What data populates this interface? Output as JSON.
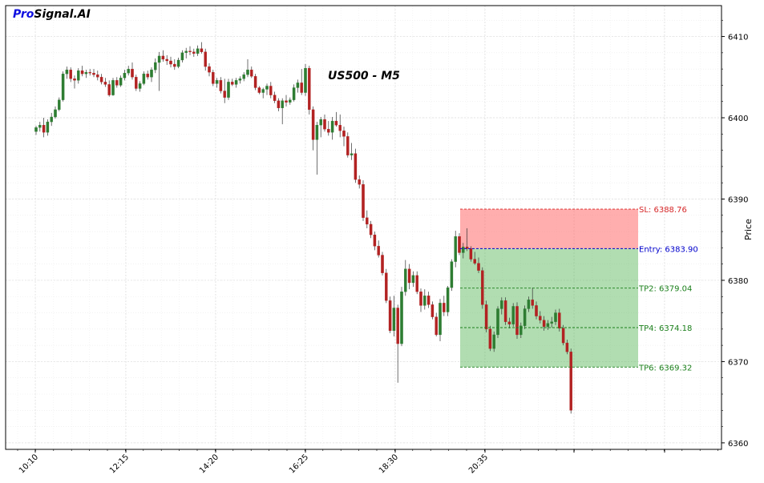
{
  "brand": {
    "part1": "Pro",
    "part2": "Signal.AI"
  },
  "chart_data": {
    "type": "candlestick",
    "title": "US500 - M5",
    "ylabel": "Price",
    "ylim": [
      6359.2,
      6413.8
    ],
    "yticks": [
      6360,
      6370,
      6380,
      6390,
      6400,
      6410
    ],
    "xtick_labels": [
      "10:10",
      "12:15",
      "14:20",
      "16:25",
      "18:30",
      "20:35",
      "",
      ""
    ],
    "grid": true,
    "levels": [
      {
        "name": "SL",
        "label": "SL: 6388.76",
        "price": 6388.76,
        "color": "#d62728"
      },
      {
        "name": "Entry",
        "label": "Entry: 6383.90",
        "price": 6383.9,
        "color": "#0000cc"
      },
      {
        "name": "TP2",
        "label": "TP2: 6379.04",
        "price": 6379.04,
        "color": "#1a7f1a"
      },
      {
        "name": "TP4",
        "label": "TP4: 6374.18",
        "price": 6374.18,
        "color": "#1a7f1a"
      },
      {
        "name": "TP6",
        "label": "TP6: 6369.32",
        "price": 6369.32,
        "color": "#1a7f1a"
      }
    ],
    "up_color": "#2e7d32",
    "down_color": "#b22222",
    "candles": [
      [
        6398.3,
        6399.0,
        6397.9,
        6398.8
      ],
      [
        6398.8,
        6399.5,
        6398.3,
        6399.1
      ],
      [
        6399.1,
        6400.0,
        6397.6,
        6398.2
      ],
      [
        6398.2,
        6399.8,
        6397.8,
        6399.5
      ],
      [
        6399.5,
        6400.6,
        6399.0,
        6400.1
      ],
      [
        6400.1,
        6401.4,
        6399.9,
        6401.0
      ],
      [
        6401.0,
        6402.5,
        6400.8,
        6402.2
      ],
      [
        6402.2,
        6405.7,
        6402.0,
        6405.4
      ],
      [
        6405.4,
        6406.3,
        6404.8,
        6405.9
      ],
      [
        6405.9,
        6406.2,
        6404.4,
        6404.8
      ],
      [
        6404.8,
        6405.2,
        6403.6,
        6404.6
      ],
      [
        6404.6,
        6406.1,
        6404.2,
        6405.8
      ],
      [
        6405.8,
        6406.4,
        6405.1,
        6405.4
      ],
      [
        6405.4,
        6405.9,
        6404.9,
        6405.6
      ],
      [
        6405.6,
        6406.0,
        6405.2,
        6405.5
      ],
      [
        6405.5,
        6406.0,
        6405.0,
        6405.3
      ],
      [
        6405.3,
        6405.8,
        6404.6,
        6405.0
      ],
      [
        6405.0,
        6405.4,
        6404.1,
        6404.4
      ],
      [
        6404.4,
        6404.9,
        6403.8,
        6404.1
      ],
      [
        6404.1,
        6404.6,
        6402.6,
        6402.8
      ],
      [
        6402.8,
        6404.9,
        6402.7,
        6404.6
      ],
      [
        6404.6,
        6405.0,
        6403.7,
        6404.0
      ],
      [
        6404.0,
        6405.2,
        6403.8,
        6404.9
      ],
      [
        6404.9,
        6405.9,
        6404.6,
        6405.5
      ],
      [
        6405.5,
        6406.4,
        6405.2,
        6406.0
      ],
      [
        6406.0,
        6406.8,
        6404.7,
        6405.0
      ],
      [
        6405.0,
        6405.3,
        6403.3,
        6403.6
      ],
      [
        6403.6,
        6404.5,
        6403.2,
        6404.2
      ],
      [
        6404.2,
        6405.7,
        6404.0,
        6405.4
      ],
      [
        6405.4,
        6405.8,
        6404.7,
        6405.0
      ],
      [
        6405.0,
        6406.2,
        6404.4,
        6405.9
      ],
      [
        6405.9,
        6407.3,
        6405.5,
        6406.8
      ],
      [
        6406.8,
        6408.1,
        6403.3,
        6407.6
      ],
      [
        6407.6,
        6408.3,
        6406.9,
        6407.2
      ],
      [
        6407.2,
        6407.7,
        6406.5,
        6407.0
      ],
      [
        6407.0,
        6407.5,
        6406.2,
        6406.6
      ],
      [
        6406.6,
        6407.2,
        6405.9,
        6406.3
      ],
      [
        6406.3,
        6407.4,
        6406.1,
        6407.1
      ],
      [
        6407.1,
        6408.3,
        6406.8,
        6408.0
      ],
      [
        6408.0,
        6408.6,
        6407.3,
        6408.2
      ],
      [
        6408.2,
        6408.8,
        6407.7,
        6408.1
      ],
      [
        6408.1,
        6408.5,
        6407.5,
        6407.9
      ],
      [
        6407.9,
        6408.9,
        6407.6,
        6408.5
      ],
      [
        6408.5,
        6409.3,
        6407.9,
        6408.1
      ],
      [
        6408.1,
        6408.5,
        6405.8,
        6406.3
      ],
      [
        6406.3,
        6406.7,
        6405.1,
        6405.6
      ],
      [
        6405.6,
        6405.9,
        6403.9,
        6404.2
      ],
      [
        6404.2,
        6404.9,
        6403.7,
        6404.6
      ],
      [
        6404.6,
        6405.0,
        6403.0,
        6403.3
      ],
      [
        6403.3,
        6404.8,
        6401.8,
        6402.5
      ],
      [
        6402.5,
        6404.8,
        6402.2,
        6404.4
      ],
      [
        6404.4,
        6404.8,
        6403.9,
        6404.1
      ],
      [
        6404.1,
        6404.9,
        6403.7,
        6404.6
      ],
      [
        6404.6,
        6405.1,
        6404.2,
        6404.8
      ],
      [
        6404.8,
        6405.6,
        6404.5,
        6405.3
      ],
      [
        6405.3,
        6407.2,
        6405.0,
        6405.9
      ],
      [
        6405.9,
        6406.3,
        6404.9,
        6405.1
      ],
      [
        6405.1,
        6405.4,
        6403.4,
        6403.7
      ],
      [
        6403.7,
        6403.9,
        6402.9,
        6403.1
      ],
      [
        6403.1,
        6403.7,
        6402.4,
        6403.5
      ],
      [
        6403.5,
        6404.2,
        6402.8,
        6403.9
      ],
      [
        6403.9,
        6404.4,
        6402.4,
        6402.8
      ],
      [
        6402.8,
        6403.2,
        6401.8,
        6402.1
      ],
      [
        6402.1,
        6402.4,
        6400.8,
        6401.2
      ],
      [
        6401.2,
        6402.4,
        6399.2,
        6402.1
      ],
      [
        6402.1,
        6402.8,
        6401.4,
        6401.9
      ],
      [
        6401.9,
        6402.5,
        6401.6,
        6402.2
      ],
      [
        6402.2,
        6404.1,
        6402.0,
        6403.7
      ],
      [
        6403.7,
        6404.7,
        6403.1,
        6404.3
      ],
      [
        6404.3,
        6406.0,
        6402.8,
        6403.1
      ],
      [
        6403.1,
        6406.6,
        6402.7,
        6406.1
      ],
      [
        6406.1,
        6406.4,
        6400.4,
        6401.0
      ],
      [
        6401.0,
        6401.4,
        6396.0,
        6397.3
      ],
      [
        6397.3,
        6399.5,
        6393.0,
        6399.1
      ],
      [
        6399.1,
        6400.1,
        6397.6,
        6399.8
      ],
      [
        6399.8,
        6400.4,
        6398.3,
        6398.6
      ],
      [
        6398.6,
        6399.6,
        6397.8,
        6398.2
      ],
      [
        6398.2,
        6400.1,
        6397.3,
        6399.6
      ],
      [
        6399.6,
        6400.7,
        6398.9,
        6399.1
      ],
      [
        6399.1,
        6400.4,
        6397.6,
        6398.4
      ],
      [
        6398.4,
        6398.9,
        6396.5,
        6397.7
      ],
      [
        6397.7,
        6398.2,
        6395.1,
        6395.4
      ],
      [
        6395.4,
        6396.9,
        6394.8,
        6395.6
      ],
      [
        6395.6,
        6396.2,
        6392.0,
        6392.4
      ],
      [
        6392.4,
        6392.9,
        6391.3,
        6391.8
      ],
      [
        6391.8,
        6392.3,
        6387.3,
        6387.7
      ],
      [
        6387.7,
        6388.6,
        6386.4,
        6386.9
      ],
      [
        6386.9,
        6387.3,
        6385.2,
        6385.6
      ],
      [
        6385.6,
        6386.0,
        6383.7,
        6384.2
      ],
      [
        6384.2,
        6384.9,
        6382.8,
        6383.1
      ],
      [
        6383.1,
        6383.5,
        6380.6,
        6380.9
      ],
      [
        6380.9,
        6381.4,
        6377.2,
        6377.5
      ],
      [
        6377.5,
        6378.0,
        6373.5,
        6373.8
      ],
      [
        6373.8,
        6378.1,
        6373.1,
        6376.6
      ],
      [
        6376.6,
        6377.0,
        6367.4,
        6372.2
      ],
      [
        6372.2,
        6379.2,
        6371.9,
        6378.6
      ],
      [
        6378.6,
        6382.5,
        6378.1,
        6381.4
      ],
      [
        6381.4,
        6382.0,
        6378.9,
        6379.7
      ],
      [
        6379.7,
        6381.1,
        6379.2,
        6380.6
      ],
      [
        6380.6,
        6381.1,
        6378.3,
        6378.6
      ],
      [
        6378.6,
        6379.0,
        6376.1,
        6376.9
      ],
      [
        6376.9,
        6378.9,
        6376.4,
        6378.1
      ],
      [
        6378.1,
        6378.6,
        6376.6,
        6377.0
      ],
      [
        6377.0,
        6377.4,
        6375.2,
        6375.5
      ],
      [
        6375.5,
        6376.0,
        6373.1,
        6373.3
      ],
      [
        6373.3,
        6377.7,
        6372.5,
        6377.2
      ],
      [
        6377.2,
        6378.1,
        6375.6,
        6376.1
      ],
      [
        6376.1,
        6379.3,
        6375.6,
        6379.1
      ],
      [
        6379.1,
        6382.6,
        6378.7,
        6382.3
      ],
      [
        6382.3,
        6386.1,
        6381.6,
        6385.4
      ],
      [
        6385.4,
        6385.8,
        6383.1,
        6383.4
      ],
      [
        6383.4,
        6384.6,
        6382.7,
        6384.1
      ],
      [
        6384.1,
        6386.4,
        6383.6,
        6383.9
      ],
      [
        6383.9,
        6384.2,
        6382.3,
        6382.6
      ],
      [
        6382.6,
        6383.5,
        6381.9,
        6382.1
      ],
      [
        6382.1,
        6382.8,
        6380.9,
        6381.2
      ],
      [
        6381.2,
        6381.6,
        6376.5,
        6377.0
      ],
      [
        6377.0,
        6377.5,
        6373.6,
        6374.0
      ],
      [
        6374.0,
        6374.4,
        6371.3,
        6371.6
      ],
      [
        6371.6,
        6373.7,
        6371.2,
        6373.3
      ],
      [
        6373.3,
        6376.8,
        6372.9,
        6376.5
      ],
      [
        6376.5,
        6377.9,
        6375.8,
        6377.5
      ],
      [
        6377.5,
        6377.9,
        6374.5,
        6374.9
      ],
      [
        6374.9,
        6375.4,
        6374.1,
        6374.6
      ],
      [
        6374.6,
        6377.2,
        6374.3,
        6376.8
      ],
      [
        6376.8,
        6377.3,
        6372.8,
        6373.3
      ],
      [
        6373.3,
        6374.8,
        6372.9,
        6374.4
      ],
      [
        6374.4,
        6376.9,
        6374.0,
        6376.5
      ],
      [
        6376.5,
        6378.0,
        6376.1,
        6377.6
      ],
      [
        6377.6,
        6379.1,
        6376.5,
        6376.9
      ],
      [
        6376.9,
        6377.4,
        6375.2,
        6375.6
      ],
      [
        6375.6,
        6376.2,
        6374.7,
        6375.1
      ],
      [
        6375.1,
        6375.6,
        6373.8,
        6374.3
      ],
      [
        6374.3,
        6375.1,
        6373.9,
        6374.7
      ],
      [
        6374.7,
        6375.5,
        6374.2,
        6374.9
      ],
      [
        6374.9,
        6376.4,
        6374.5,
        6376.0
      ],
      [
        6376.0,
        6376.5,
        6373.7,
        6374.1
      ],
      [
        6374.1,
        6374.5,
        6372.0,
        6372.3
      ],
      [
        6372.3,
        6372.7,
        6370.9,
        6371.2
      ],
      [
        6371.2,
        6371.6,
        6363.6,
        6364.0
      ]
    ]
  }
}
